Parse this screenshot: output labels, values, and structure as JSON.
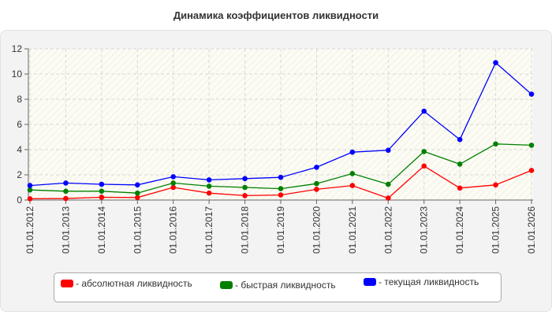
{
  "chart_data": {
    "type": "line",
    "title": "Динамика коэффициентов ликвидности",
    "categories": [
      "01.01.2012",
      "01.01.2013",
      "01.01.2014",
      "01.01.2015",
      "01.01.2016",
      "01.01.2017",
      "01.01.2018",
      "01.01.2019",
      "01.01.2020",
      "01.01.2021",
      "01.01.2022",
      "01.01.2023",
      "01.01.2024",
      "01.01.2025",
      "01.01.2026"
    ],
    "series": [
      {
        "name": "- абсолютная ликвидность",
        "color": "#ff0000",
        "values": [
          0.1,
          0.12,
          0.22,
          0.2,
          1.0,
          0.55,
          0.35,
          0.4,
          0.85,
          1.15,
          0.15,
          2.7,
          0.95,
          1.2,
          2.35
        ]
      },
      {
        "name": "- быстрая ликвидность",
        "color": "#008000",
        "values": [
          0.8,
          0.7,
          0.7,
          0.55,
          1.35,
          1.1,
          1.0,
          0.9,
          1.3,
          2.1,
          1.25,
          3.85,
          2.85,
          4.45,
          4.35
        ]
      },
      {
        "name": "- текущая ликвидность",
        "color": "#0000ff",
        "values": [
          1.15,
          1.35,
          1.25,
          1.2,
          1.85,
          1.6,
          1.7,
          1.8,
          2.6,
          3.8,
          3.95,
          7.05,
          4.8,
          10.9,
          8.4
        ]
      }
    ],
    "ylim": [
      0,
      12
    ],
    "yticks": [
      0,
      2,
      4,
      6,
      8,
      10,
      12
    ],
    "grid": true,
    "legend_position": "bottom"
  }
}
